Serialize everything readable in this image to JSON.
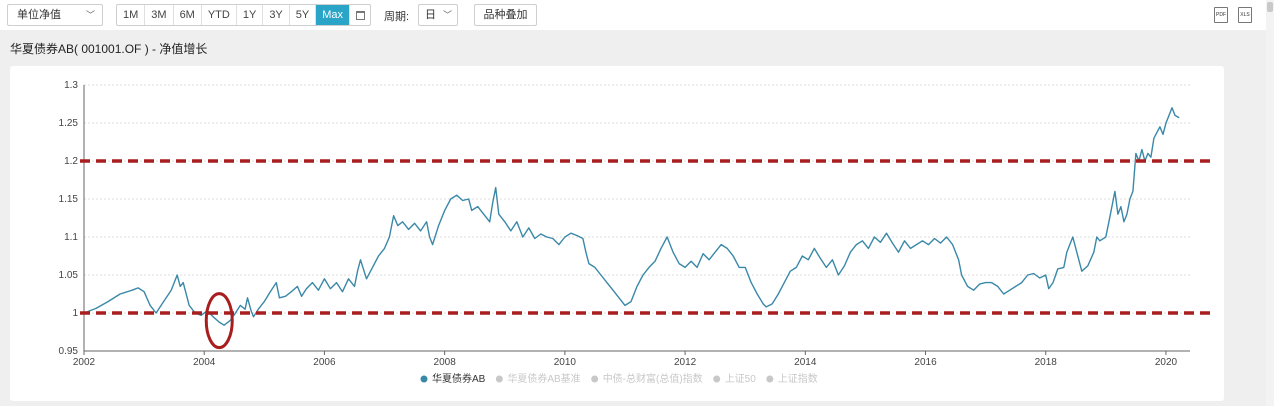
{
  "toolbar": {
    "metric_select": "单位净值",
    "ranges": [
      "1M",
      "3M",
      "6M",
      "YTD",
      "1Y",
      "3Y",
      "5Y",
      "Max"
    ],
    "active_range": "Max",
    "period_label": "周期:",
    "period_value": "日",
    "overlay_button": "品种叠加",
    "pdf_label": "PDF",
    "xls_label": "XLS"
  },
  "title": "华夏债券AB( 001001.OF ) - 净值增长",
  "colors": {
    "series": "#3a88a8",
    "reference": "#a81e1e",
    "accent": "#2aa5c8",
    "legend_inactive": "#c8c8c8"
  },
  "chart_data": {
    "type": "line",
    "xlim": [
      2002,
      2020.4
    ],
    "ylim": [
      0.95,
      1.3
    ],
    "yticks": [
      0.95,
      1,
      1.05,
      1.1,
      1.15,
      1.2,
      1.25,
      1.3
    ],
    "ytick_labels": [
      "0.95",
      "1",
      "1.05",
      "1.1",
      "1.15",
      "1.2",
      "1.25",
      "1.3"
    ],
    "xticks": [
      2002,
      2004,
      2006,
      2008,
      2010,
      2012,
      2014,
      2016,
      2018,
      2020
    ],
    "xtick_labels": [
      "2002",
      "2004",
      "2006",
      "2008",
      "2010",
      "2012",
      "2014",
      "2016",
      "2018",
      "2020"
    ],
    "grid": true,
    "legend_position": "bottom-center",
    "series": [
      {
        "name": "华夏债券AB",
        "active": true,
        "points": [
          [
            2002.0,
            1.0
          ],
          [
            2002.2,
            1.006
          ],
          [
            2002.4,
            1.015
          ],
          [
            2002.6,
            1.025
          ],
          [
            2002.8,
            1.03
          ],
          [
            2002.9,
            1.033
          ],
          [
            2003.0,
            1.028
          ],
          [
            2003.1,
            1.01
          ],
          [
            2003.2,
            1.0
          ],
          [
            2003.3,
            1.012
          ],
          [
            2003.45,
            1.03
          ],
          [
            2003.55,
            1.05
          ],
          [
            2003.6,
            1.035
          ],
          [
            2003.65,
            1.04
          ],
          [
            2003.75,
            1.01
          ],
          [
            2003.85,
            1.0
          ],
          [
            2003.95,
            0.997
          ],
          [
            2004.05,
            1.003
          ],
          [
            2004.15,
            0.995
          ],
          [
            2004.25,
            0.988
          ],
          [
            2004.33,
            0.984
          ],
          [
            2004.43,
            0.99
          ],
          [
            2004.52,
            1.0
          ],
          [
            2004.6,
            1.01
          ],
          [
            2004.68,
            1.005
          ],
          [
            2004.72,
            1.02
          ],
          [
            2004.78,
            1.003
          ],
          [
            2004.82,
            0.995
          ],
          [
            2004.9,
            1.005
          ],
          [
            2005.0,
            1.015
          ],
          [
            2005.1,
            1.028
          ],
          [
            2005.2,
            1.04
          ],
          [
            2005.25,
            1.02
          ],
          [
            2005.35,
            1.022
          ],
          [
            2005.45,
            1.028
          ],
          [
            2005.55,
            1.035
          ],
          [
            2005.62,
            1.022
          ],
          [
            2005.7,
            1.032
          ],
          [
            2005.8,
            1.04
          ],
          [
            2005.9,
            1.03
          ],
          [
            2006.0,
            1.045
          ],
          [
            2006.1,
            1.032
          ],
          [
            2006.2,
            1.04
          ],
          [
            2006.3,
            1.028
          ],
          [
            2006.4,
            1.045
          ],
          [
            2006.5,
            1.035
          ],
          [
            2006.55,
            1.055
          ],
          [
            2006.6,
            1.07
          ],
          [
            2006.7,
            1.045
          ],
          [
            2006.8,
            1.06
          ],
          [
            2006.9,
            1.075
          ],
          [
            2007.0,
            1.085
          ],
          [
            2007.08,
            1.1
          ],
          [
            2007.15,
            1.128
          ],
          [
            2007.22,
            1.115
          ],
          [
            2007.3,
            1.12
          ],
          [
            2007.4,
            1.11
          ],
          [
            2007.5,
            1.118
          ],
          [
            2007.6,
            1.108
          ],
          [
            2007.7,
            1.12
          ],
          [
            2007.75,
            1.1
          ],
          [
            2007.8,
            1.09
          ],
          [
            2007.9,
            1.115
          ],
          [
            2008.0,
            1.135
          ],
          [
            2008.1,
            1.15
          ],
          [
            2008.2,
            1.155
          ],
          [
            2008.3,
            1.148
          ],
          [
            2008.4,
            1.15
          ],
          [
            2008.45,
            1.135
          ],
          [
            2008.55,
            1.14
          ],
          [
            2008.65,
            1.13
          ],
          [
            2008.75,
            1.12
          ],
          [
            2008.8,
            1.145
          ],
          [
            2008.85,
            1.165
          ],
          [
            2008.9,
            1.13
          ],
          [
            2009.0,
            1.12
          ],
          [
            2009.1,
            1.108
          ],
          [
            2009.2,
            1.12
          ],
          [
            2009.3,
            1.1
          ],
          [
            2009.4,
            1.112
          ],
          [
            2009.5,
            1.098
          ],
          [
            2009.6,
            1.104
          ],
          [
            2009.7,
            1.1
          ],
          [
            2009.8,
            1.098
          ],
          [
            2009.9,
            1.09
          ],
          [
            2010.0,
            1.1
          ],
          [
            2010.1,
            1.105
          ],
          [
            2010.2,
            1.102
          ],
          [
            2010.3,
            1.098
          ],
          [
            2010.35,
            1.08
          ],
          [
            2010.4,
            1.065
          ],
          [
            2010.5,
            1.06
          ],
          [
            2010.6,
            1.05
          ],
          [
            2010.7,
            1.04
          ],
          [
            2010.8,
            1.03
          ],
          [
            2010.9,
            1.02
          ],
          [
            2011.0,
            1.01
          ],
          [
            2011.1,
            1.015
          ],
          [
            2011.2,
            1.035
          ],
          [
            2011.3,
            1.05
          ],
          [
            2011.4,
            1.06
          ],
          [
            2011.5,
            1.068
          ],
          [
            2011.6,
            1.085
          ],
          [
            2011.7,
            1.1
          ],
          [
            2011.8,
            1.08
          ],
          [
            2011.9,
            1.065
          ],
          [
            2012.0,
            1.06
          ],
          [
            2012.1,
            1.068
          ],
          [
            2012.2,
            1.06
          ],
          [
            2012.3,
            1.078
          ],
          [
            2012.4,
            1.07
          ],
          [
            2012.5,
            1.08
          ],
          [
            2012.6,
            1.09
          ],
          [
            2012.7,
            1.085
          ],
          [
            2012.8,
            1.075
          ],
          [
            2012.9,
            1.06
          ],
          [
            2013.0,
            1.06
          ],
          [
            2013.1,
            1.04
          ],
          [
            2013.2,
            1.025
          ],
          [
            2013.3,
            1.012
          ],
          [
            2013.35,
            1.008
          ],
          [
            2013.45,
            1.012
          ],
          [
            2013.55,
            1.025
          ],
          [
            2013.65,
            1.04
          ],
          [
            2013.75,
            1.055
          ],
          [
            2013.85,
            1.06
          ],
          [
            2013.95,
            1.075
          ],
          [
            2014.05,
            1.07
          ],
          [
            2014.15,
            1.085
          ],
          [
            2014.25,
            1.072
          ],
          [
            2014.35,
            1.06
          ],
          [
            2014.45,
            1.07
          ],
          [
            2014.55,
            1.05
          ],
          [
            2014.65,
            1.062
          ],
          [
            2014.75,
            1.08
          ],
          [
            2014.85,
            1.09
          ],
          [
            2014.95,
            1.095
          ],
          [
            2015.05,
            1.085
          ],
          [
            2015.15,
            1.1
          ],
          [
            2015.25,
            1.093
          ],
          [
            2015.35,
            1.105
          ],
          [
            2015.45,
            1.092
          ],
          [
            2015.55,
            1.08
          ],
          [
            2015.65,
            1.095
          ],
          [
            2015.75,
            1.085
          ],
          [
            2015.85,
            1.09
          ],
          [
            2015.95,
            1.095
          ],
          [
            2016.05,
            1.09
          ],
          [
            2016.15,
            1.098
          ],
          [
            2016.25,
            1.092
          ],
          [
            2016.35,
            1.1
          ],
          [
            2016.45,
            1.09
          ],
          [
            2016.55,
            1.07
          ],
          [
            2016.6,
            1.05
          ],
          [
            2016.7,
            1.035
          ],
          [
            2016.8,
            1.03
          ],
          [
            2016.9,
            1.038
          ],
          [
            2017.0,
            1.04
          ],
          [
            2017.1,
            1.04
          ],
          [
            2017.2,
            1.035
          ],
          [
            2017.3,
            1.025
          ],
          [
            2017.4,
            1.03
          ],
          [
            2017.5,
            1.035
          ],
          [
            2017.6,
            1.04
          ],
          [
            2017.7,
            1.05
          ],
          [
            2017.8,
            1.052
          ],
          [
            2017.9,
            1.046
          ],
          [
            2018.0,
            1.05
          ],
          [
            2018.05,
            1.032
          ],
          [
            2018.12,
            1.04
          ],
          [
            2018.2,
            1.058
          ],
          [
            2018.3,
            1.06
          ],
          [
            2018.35,
            1.08
          ],
          [
            2018.4,
            1.09
          ],
          [
            2018.45,
            1.1
          ],
          [
            2018.5,
            1.085
          ],
          [
            2018.55,
            1.07
          ],
          [
            2018.6,
            1.055
          ],
          [
            2018.7,
            1.062
          ],
          [
            2018.8,
            1.08
          ],
          [
            2018.85,
            1.1
          ],
          [
            2018.9,
            1.095
          ],
          [
            2019.0,
            1.1
          ],
          [
            2019.05,
            1.12
          ],
          [
            2019.1,
            1.14
          ],
          [
            2019.15,
            1.16
          ],
          [
            2019.2,
            1.13
          ],
          [
            2019.25,
            1.14
          ],
          [
            2019.3,
            1.12
          ],
          [
            2019.35,
            1.13
          ],
          [
            2019.4,
            1.15
          ],
          [
            2019.45,
            1.16
          ],
          [
            2019.5,
            1.21
          ],
          [
            2019.55,
            1.2
          ],
          [
            2019.6,
            1.215
          ],
          [
            2019.65,
            1.2
          ],
          [
            2019.7,
            1.21
          ],
          [
            2019.75,
            1.205
          ],
          [
            2019.8,
            1.23
          ],
          [
            2019.9,
            1.245
          ],
          [
            2019.95,
            1.235
          ],
          [
            2020.0,
            1.25
          ],
          [
            2020.05,
            1.26
          ],
          [
            2020.1,
            1.27
          ],
          [
            2020.15,
            1.26
          ],
          [
            2020.22,
            1.257
          ]
        ]
      },
      {
        "name": "华夏债券AB基准",
        "active": false
      },
      {
        "name": "中债-总财富(总值)指数",
        "active": false
      },
      {
        "name": "上证50",
        "active": false
      },
      {
        "name": "上证指数",
        "active": false
      }
    ],
    "reference_lines": [
      1.2,
      1.0
    ],
    "highlight_circle": {
      "x": 2004.25,
      "y": 0.99
    }
  }
}
